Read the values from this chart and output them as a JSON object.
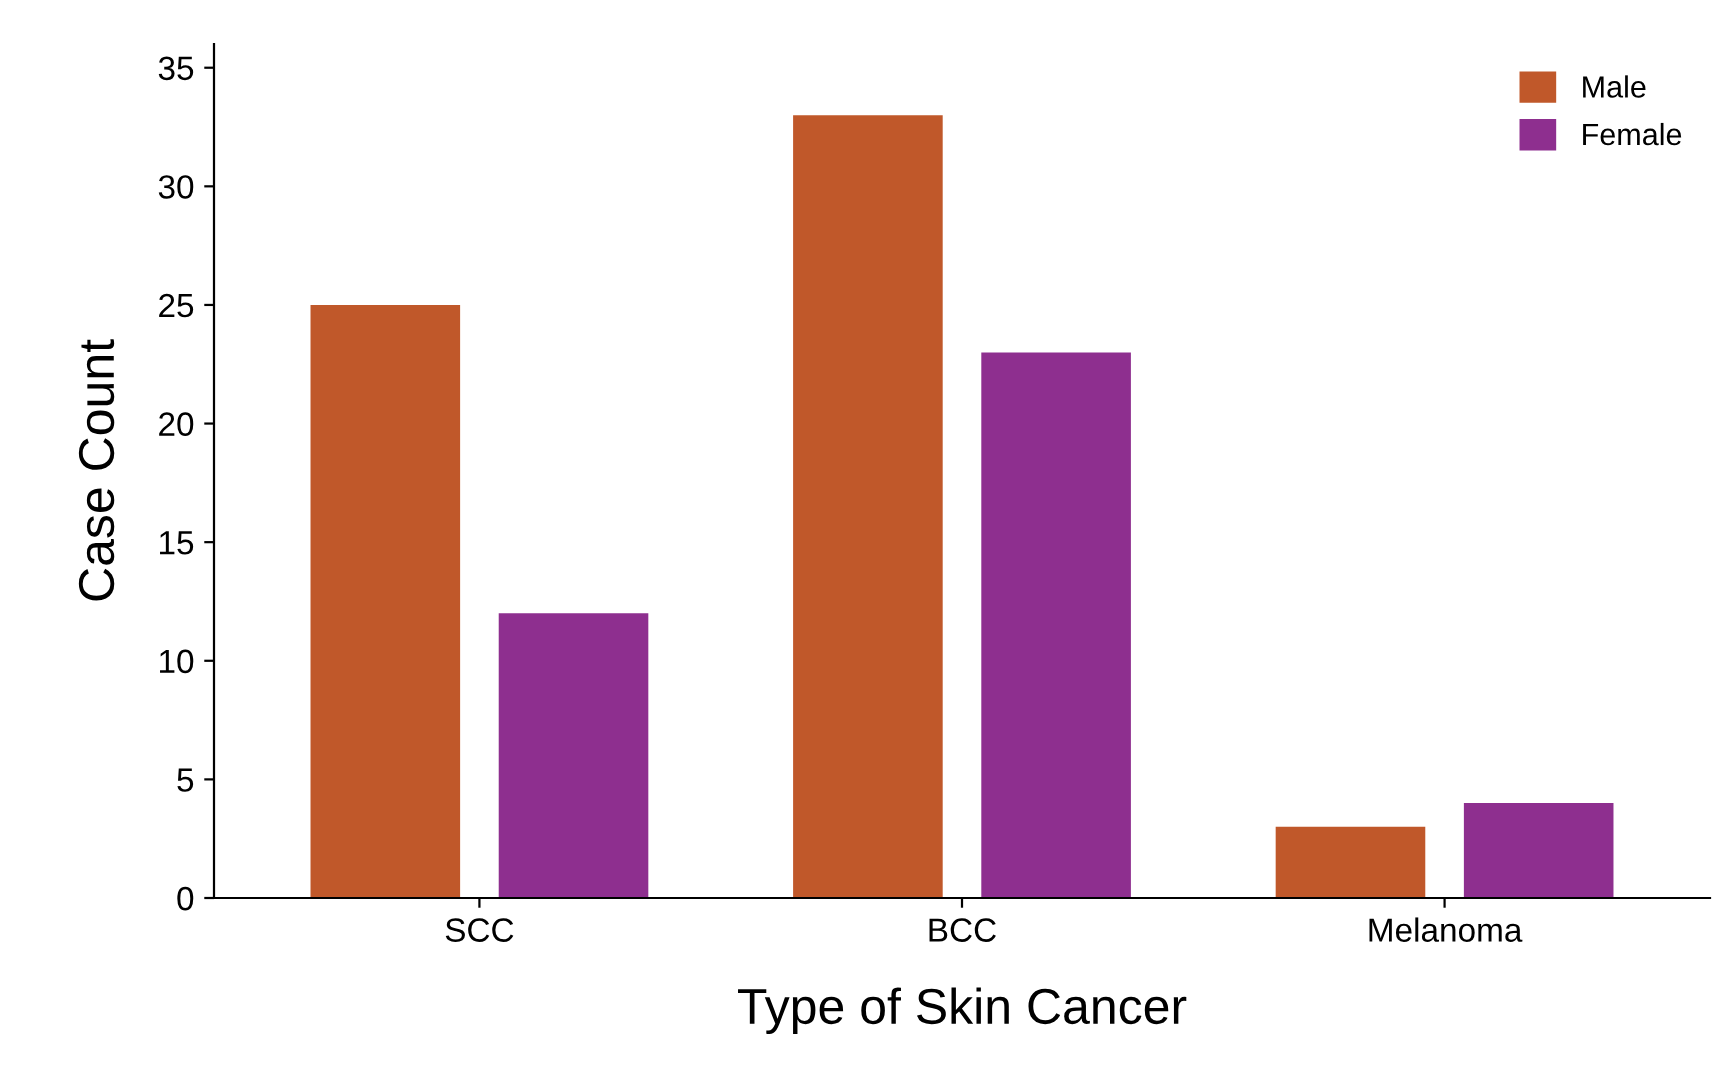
{
  "chart_data": {
    "type": "bar",
    "xlabel": "Type of Skin Cancer",
    "ylabel": "Case Count",
    "categories": [
      "SCC",
      "BCC",
      "Melanoma"
    ],
    "series": [
      {
        "name": "Male",
        "color": "#c0582a",
        "values": [
          25,
          33,
          3
        ]
      },
      {
        "name": "Female",
        "color": "#8e2f8f",
        "values": [
          12,
          23,
          4
        ]
      }
    ],
    "ylim": [
      0,
      36
    ],
    "yticks": [
      0,
      5,
      10,
      15,
      20,
      25,
      30,
      35
    ],
    "grid": false,
    "legend": "top right"
  }
}
